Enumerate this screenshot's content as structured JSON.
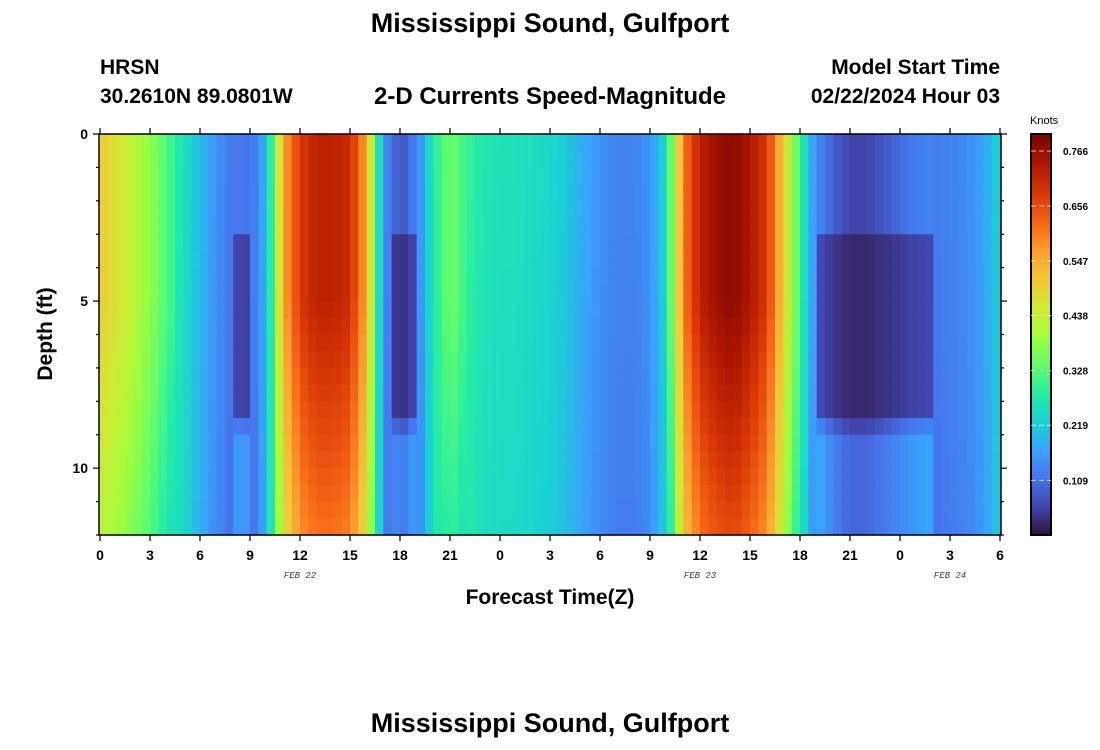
{
  "header": {
    "title": "Mississippi Sound, Gulfport",
    "station_id": "HRSN",
    "station_coords": "30.2610N  89.0801W",
    "subtitle": "2-D Currents Speed-Magnitude",
    "start_label": "Model Start Time",
    "start_time": "02/22/2024 Hour 03"
  },
  "footer": {
    "repeat_title": "Mississippi Sound, Gulfport"
  },
  "chart_data": {
    "type": "heatmap",
    "title": "2-D Currents Speed-Magnitude",
    "xlabel": "Forecast Time(Z)",
    "ylabel": "Depth (ft)",
    "x_unit": "forecast hours from 2024-02-22 00Z",
    "xlim": [
      0,
      54
    ],
    "ylim": [
      0,
      12
    ],
    "y_inverted": true,
    "x_ticks": [
      0,
      3,
      6,
      9,
      12,
      15,
      18,
      21,
      24,
      27,
      30,
      33,
      36,
      39,
      42,
      45,
      48,
      51,
      54
    ],
    "x_tick_labels": [
      "0",
      "3",
      "6",
      "9",
      "12",
      "15",
      "18",
      "21",
      "0",
      "3",
      "6",
      "9",
      "12",
      "15",
      "18",
      "21",
      "0",
      "3",
      "6"
    ],
    "y_ticks": [
      0,
      5,
      10
    ],
    "y_tick_labels": [
      "0",
      "5",
      "10"
    ],
    "date_labels": [
      {
        "label": "FEB 22",
        "x": 12
      },
      {
        "label": "FEB 23",
        "x": 36
      },
      {
        "label": "FEB 24",
        "x": 51
      }
    ],
    "colorbar": {
      "unit": "Knots",
      "min": 0.0,
      "max": 0.8,
      "tick_values": [
        0.109,
        0.219,
        0.328,
        0.438,
        0.547,
        0.656,
        0.766
      ],
      "tick_labels": [
        "0.109",
        "0.219",
        "0.328",
        "0.438",
        "0.547",
        "0.656",
        "0.766"
      ]
    },
    "speed_profile_knots": {
      "description": "approximate surface-to-mid-depth speed per forecast hour; peaks at ~hour 13 and ~hour 38, minima near hour 18 and hour 45",
      "hours": [
        0,
        1,
        2,
        3,
        4,
        5,
        6,
        7,
        8,
        9,
        10,
        11,
        12,
        13,
        14,
        15,
        16,
        17,
        18,
        19,
        20,
        21,
        22,
        23,
        24,
        25,
        26,
        27,
        28,
        29,
        30,
        31,
        32,
        33,
        34,
        35,
        36,
        37,
        38,
        39,
        40,
        41,
        42,
        43,
        44,
        45,
        46,
        47,
        48,
        49,
        50,
        51,
        52,
        53,
        54
      ],
      "speeds": [
        0.5,
        0.47,
        0.43,
        0.38,
        0.32,
        0.26,
        0.2,
        0.15,
        0.11,
        0.1,
        0.2,
        0.55,
        0.68,
        0.72,
        0.72,
        0.7,
        0.55,
        0.15,
        0.06,
        0.12,
        0.28,
        0.35,
        0.3,
        0.27,
        0.26,
        0.26,
        0.25,
        0.24,
        0.22,
        0.18,
        0.15,
        0.13,
        0.13,
        0.15,
        0.25,
        0.6,
        0.72,
        0.76,
        0.78,
        0.74,
        0.68,
        0.5,
        0.3,
        0.13,
        0.08,
        0.05,
        0.05,
        0.07,
        0.09,
        0.11,
        0.12,
        0.13,
        0.14,
        0.17,
        0.24
      ]
    }
  }
}
